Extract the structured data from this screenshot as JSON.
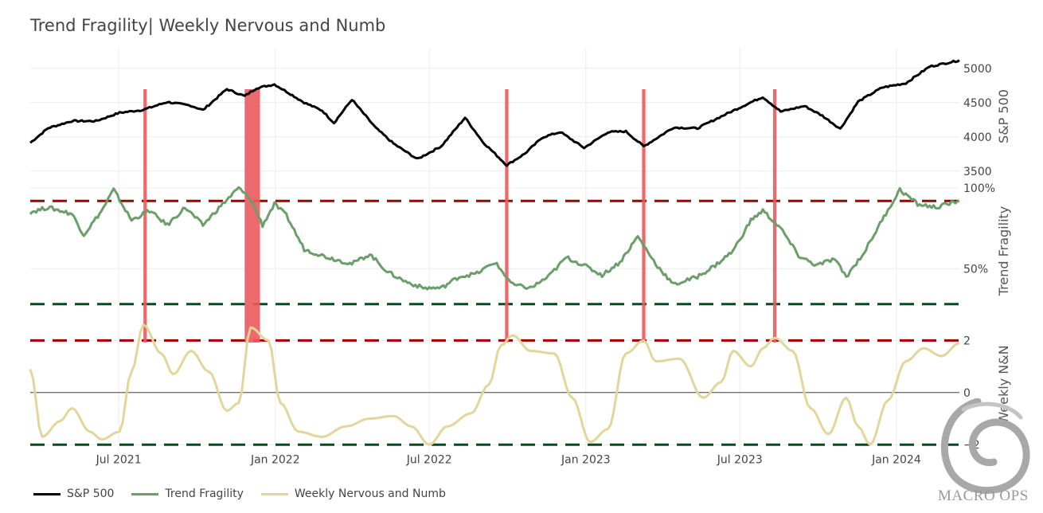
{
  "title": "Trend Fragility| Weekly Nervous and Numb",
  "colors": {
    "sp500": "#000000",
    "fragility": "#6b9e6b",
    "nn": "#e3d69a",
    "signal": "#ea5a5e",
    "upper_threshold": "#a00000",
    "lower_threshold": "#0a4a20",
    "grid": "#ececec"
  },
  "x_axis": {
    "start": "2021-03-19",
    "end": "2024-03-15",
    "ticks": [
      {
        "date": "2021-07-01",
        "label": "Jul 2021"
      },
      {
        "date": "2022-01-01",
        "label": "Jan 2022"
      },
      {
        "date": "2022-07-01",
        "label": "Jul 2022"
      },
      {
        "date": "2023-01-01",
        "label": "Jan 2023"
      },
      {
        "date": "2023-07-01",
        "label": "Jul 2023"
      },
      {
        "date": "2024-01-01",
        "label": "Jan 2024"
      }
    ]
  },
  "panels": {
    "sp500": {
      "axis_title": "S&P 500",
      "range": [
        3300,
        5300
      ],
      "ticks": [
        {
          "v": 3500,
          "label": "3500"
        },
        {
          "v": 4000,
          "label": "4000"
        },
        {
          "v": 4500,
          "label": "4500"
        },
        {
          "v": 5000,
          "label": "5000"
        }
      ]
    },
    "fragility": {
      "axis_title": "Trend Fragility",
      "range": [
        0.2,
        1.02
      ],
      "ticks": [
        {
          "v": 0.5,
          "label": "50%"
        },
        {
          "v": 1.0,
          "label": "100%"
        }
      ],
      "upper_line": 0.92,
      "lower_line": 0.28
    },
    "nn": {
      "axis_title": "Weekly N&N",
      "range": [
        -2.3,
        2.9
      ],
      "ticks": [
        {
          "v": -2,
          "label": "−2"
        },
        {
          "v": 0,
          "label": "0"
        },
        {
          "v": 2,
          "label": "2"
        }
      ],
      "upper_line": 2,
      "lower_line": -2,
      "zero_line": 0
    }
  },
  "legend": [
    {
      "name": "S&P 500",
      "color": "#000000"
    },
    {
      "name": "Trend Fragility",
      "color": "#6b9e6b"
    },
    {
      "name": "Weekly Nervous and Numb",
      "color": "#e3d69a"
    }
  ],
  "logo": {
    "text": "MACRO OPS"
  },
  "chart_data": {
    "type": "line",
    "title": "Trend Fragility| Weekly Nervous and Numb",
    "series": [
      {
        "name": "S&P 500",
        "points": [
          [
            "2021-03-19",
            3913
          ],
          [
            "2021-04-09",
            4128
          ],
          [
            "2021-05-07",
            4232
          ],
          [
            "2021-06-04",
            4230
          ],
          [
            "2021-07-02",
            4352
          ],
          [
            "2021-07-30",
            4395
          ],
          [
            "2021-08-27",
            4509
          ],
          [
            "2021-09-24",
            4455
          ],
          [
            "2021-10-08",
            4391
          ],
          [
            "2021-11-05",
            4697
          ],
          [
            "2021-11-26",
            4595
          ],
          [
            "2021-12-10",
            4712
          ],
          [
            "2021-12-31",
            4766
          ],
          [
            "2022-01-14",
            4662
          ],
          [
            "2022-02-04",
            4500
          ],
          [
            "2022-02-25",
            4384
          ],
          [
            "2022-03-11",
            4204
          ],
          [
            "2022-04-01",
            4545
          ],
          [
            "2022-04-29",
            4131
          ],
          [
            "2022-05-20",
            3901
          ],
          [
            "2022-06-17",
            3675
          ],
          [
            "2022-07-15",
            3863
          ],
          [
            "2022-08-12",
            4280
          ],
          [
            "2022-09-02",
            3924
          ],
          [
            "2022-09-30",
            3586
          ],
          [
            "2022-10-21",
            3752
          ],
          [
            "2022-11-11",
            3993
          ],
          [
            "2022-12-02",
            4071
          ],
          [
            "2022-12-30",
            3839
          ],
          [
            "2023-01-27",
            4070
          ],
          [
            "2023-02-17",
            4079
          ],
          [
            "2023-03-10",
            3861
          ],
          [
            "2023-04-14",
            4137
          ],
          [
            "2023-05-12",
            4124
          ],
          [
            "2023-06-09",
            4298
          ],
          [
            "2023-07-14",
            4505
          ],
          [
            "2023-07-28",
            4582
          ],
          [
            "2023-08-18",
            4369
          ],
          [
            "2023-09-15",
            4450
          ],
          [
            "2023-10-06",
            4308
          ],
          [
            "2023-10-27",
            4117
          ],
          [
            "2023-11-17",
            4514
          ],
          [
            "2023-12-15",
            4719
          ],
          [
            "2024-01-12",
            4783
          ],
          [
            "2024-02-09",
            5026
          ],
          [
            "2024-03-15",
            5117
          ]
        ]
      },
      {
        "name": "Trend Fragility",
        "points": [
          [
            "2021-03-19",
            0.85
          ],
          [
            "2021-04-09",
            0.88
          ],
          [
            "2021-05-07",
            0.84
          ],
          [
            "2021-05-21",
            0.71
          ],
          [
            "2021-06-11",
            0.86
          ],
          [
            "2021-06-25",
            0.99
          ],
          [
            "2021-07-16",
            0.8
          ],
          [
            "2021-08-06",
            0.86
          ],
          [
            "2021-08-27",
            0.77
          ],
          [
            "2021-09-17",
            0.88
          ],
          [
            "2021-10-08",
            0.77
          ],
          [
            "2021-10-29",
            0.89
          ],
          [
            "2021-11-19",
            1.0
          ],
          [
            "2021-12-03",
            0.93
          ],
          [
            "2021-12-17",
            0.77
          ],
          [
            "2021-12-31",
            0.9
          ],
          [
            "2022-01-14",
            0.83
          ],
          [
            "2022-02-04",
            0.62
          ],
          [
            "2022-03-04",
            0.57
          ],
          [
            "2022-04-01",
            0.53
          ],
          [
            "2022-04-22",
            0.59
          ],
          [
            "2022-05-13",
            0.48
          ],
          [
            "2022-06-03",
            0.42
          ],
          [
            "2022-06-24",
            0.38
          ],
          [
            "2022-07-15",
            0.38
          ],
          [
            "2022-08-05",
            0.45
          ],
          [
            "2022-08-26",
            0.47
          ],
          [
            "2022-09-16",
            0.54
          ],
          [
            "2022-10-07",
            0.4
          ],
          [
            "2022-10-28",
            0.38
          ],
          [
            "2022-11-18",
            0.45
          ],
          [
            "2022-12-09",
            0.57
          ],
          [
            "2022-12-30",
            0.52
          ],
          [
            "2023-01-20",
            0.46
          ],
          [
            "2023-02-10",
            0.54
          ],
          [
            "2023-03-03",
            0.7
          ],
          [
            "2023-03-24",
            0.53
          ],
          [
            "2023-04-14",
            0.4
          ],
          [
            "2023-05-12",
            0.45
          ],
          [
            "2023-06-02",
            0.52
          ],
          [
            "2023-06-23",
            0.61
          ],
          [
            "2023-07-14",
            0.8
          ],
          [
            "2023-07-28",
            0.86
          ],
          [
            "2023-08-18",
            0.75
          ],
          [
            "2023-09-08",
            0.58
          ],
          [
            "2023-09-29",
            0.52
          ],
          [
            "2023-10-20",
            0.56
          ],
          [
            "2023-11-03",
            0.45
          ],
          [
            "2023-11-24",
            0.6
          ],
          [
            "2023-12-15",
            0.8
          ],
          [
            "2024-01-05",
            0.99
          ],
          [
            "2024-01-26",
            0.9
          ],
          [
            "2024-02-16",
            0.88
          ],
          [
            "2024-03-15",
            0.92
          ]
        ]
      },
      {
        "name": "Weekly Nervous and Numb",
        "points": [
          [
            "2021-03-19",
            0.9
          ],
          [
            "2021-04-02",
            -1.7
          ],
          [
            "2021-04-23",
            -1.1
          ],
          [
            "2021-05-07",
            -0.6
          ],
          [
            "2021-05-28",
            -1.5
          ],
          [
            "2021-06-11",
            -1.8
          ],
          [
            "2021-07-02",
            -1.5
          ],
          [
            "2021-07-16",
            0.8
          ],
          [
            "2021-07-30",
            2.6
          ],
          [
            "2021-08-20",
            1.5
          ],
          [
            "2021-09-03",
            0.7
          ],
          [
            "2021-09-24",
            1.6
          ],
          [
            "2021-10-15",
            0.8
          ],
          [
            "2021-11-05",
            -0.7
          ],
          [
            "2021-11-19",
            -0.4
          ],
          [
            "2021-12-03",
            2.5
          ],
          [
            "2021-12-24",
            2.0
          ],
          [
            "2022-01-07",
            -0.4
          ],
          [
            "2022-01-28",
            -1.5
          ],
          [
            "2022-02-25",
            -1.7
          ],
          [
            "2022-03-25",
            -1.3
          ],
          [
            "2022-04-22",
            -1.0
          ],
          [
            "2022-05-20",
            -0.9
          ],
          [
            "2022-06-10",
            -1.3
          ],
          [
            "2022-07-01",
            -2.0
          ],
          [
            "2022-07-22",
            -1.3
          ],
          [
            "2022-08-19",
            -0.8
          ],
          [
            "2022-09-09",
            0.3
          ],
          [
            "2022-09-23",
            1.8
          ],
          [
            "2022-10-07",
            2.2
          ],
          [
            "2022-10-28",
            1.6
          ],
          [
            "2022-11-25",
            1.5
          ],
          [
            "2022-12-16",
            -0.2
          ],
          [
            "2023-01-06",
            -1.9
          ],
          [
            "2023-01-27",
            -1.4
          ],
          [
            "2023-02-17",
            1.5
          ],
          [
            "2023-03-10",
            2.0
          ],
          [
            "2023-03-24",
            1.2
          ],
          [
            "2023-04-21",
            1.3
          ],
          [
            "2023-05-19",
            -0.2
          ],
          [
            "2023-06-09",
            0.4
          ],
          [
            "2023-06-23",
            1.6
          ],
          [
            "2023-07-14",
            1.0
          ],
          [
            "2023-07-28",
            1.7
          ],
          [
            "2023-08-11",
            2.1
          ],
          [
            "2023-09-01",
            1.6
          ],
          [
            "2023-09-22",
            -0.6
          ],
          [
            "2023-10-13",
            -1.6
          ],
          [
            "2023-11-03",
            -0.2
          ],
          [
            "2023-11-17",
            -1.3
          ],
          [
            "2023-12-01",
            -2.0
          ],
          [
            "2023-12-22",
            -0.3
          ],
          [
            "2024-01-12",
            1.2
          ],
          [
            "2024-02-02",
            1.7
          ],
          [
            "2024-02-23",
            1.4
          ],
          [
            "2024-03-15",
            1.9
          ]
        ]
      }
    ],
    "signal_bands": [
      {
        "start": "2021-07-30",
        "end": "2021-08-03"
      },
      {
        "start": "2021-11-26",
        "end": "2021-12-14"
      },
      {
        "start": "2022-09-28",
        "end": "2022-10-02"
      },
      {
        "start": "2023-03-08",
        "end": "2023-03-12"
      },
      {
        "start": "2023-08-09",
        "end": "2023-08-13"
      }
    ],
    "panels": [
      {
        "ylabel": "S&P 500",
        "ylim": [
          3300,
          5300
        ]
      },
      {
        "ylabel": "Trend Fragility",
        "ylim": [
          0.2,
          1.02
        ]
      },
      {
        "ylabel": "Weekly N&N",
        "ylim": [
          -2.3,
          2.9
        ]
      }
    ],
    "grid": true,
    "legend_position": "bottom-left"
  }
}
